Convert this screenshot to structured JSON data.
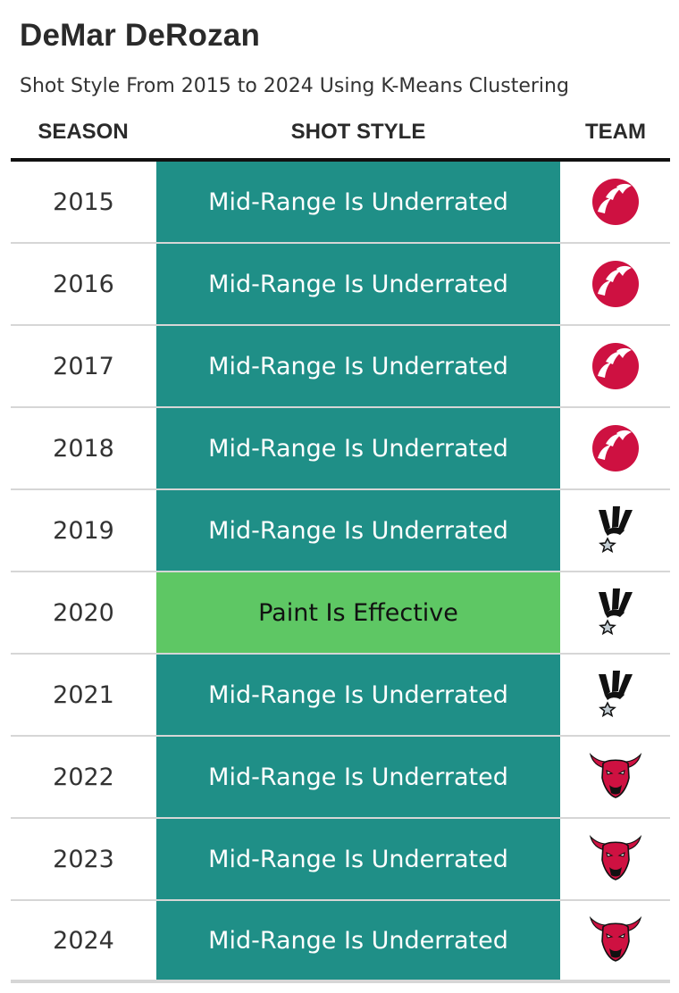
{
  "title": "DeMar DeRozan",
  "subtitle": "Shot Style From 2015 to 2024 Using K-Means Clustering",
  "headers": {
    "season": "SEASON",
    "shot_style": "SHOT STYLE",
    "team": "TEAM"
  },
  "colors": {
    "Mid-Range Is Underrated": {
      "bg": "#1f8f87",
      "fg": "#ffffff"
    },
    "Paint Is Effective": {
      "bg": "#5ec764",
      "fg": "#111111"
    }
  },
  "chart_data": {
    "type": "table",
    "columns": [
      "SEASON",
      "SHOT STYLE",
      "TEAM"
    ],
    "rows": [
      {
        "season": "2015",
        "shot_style": "Mid-Range Is Underrated",
        "team_logo": "raptors-logo-icon"
      },
      {
        "season": "2016",
        "shot_style": "Mid-Range Is Underrated",
        "team_logo": "raptors-logo-icon"
      },
      {
        "season": "2017",
        "shot_style": "Mid-Range Is Underrated",
        "team_logo": "raptors-logo-icon"
      },
      {
        "season": "2018",
        "shot_style": "Mid-Range Is Underrated",
        "team_logo": "raptors-logo-icon"
      },
      {
        "season": "2019",
        "shot_style": "Mid-Range Is Underrated",
        "team_logo": "spurs-logo-icon"
      },
      {
        "season": "2020",
        "shot_style": "Paint Is Effective",
        "team_logo": "spurs-logo-icon"
      },
      {
        "season": "2021",
        "shot_style": "Mid-Range Is Underrated",
        "team_logo": "spurs-logo-icon"
      },
      {
        "season": "2022",
        "shot_style": "Mid-Range Is Underrated",
        "team_logo": "bulls-logo-icon"
      },
      {
        "season": "2023",
        "shot_style": "Mid-Range Is Underrated",
        "team_logo": "bulls-logo-icon"
      },
      {
        "season": "2024",
        "shot_style": "Mid-Range Is Underrated",
        "team_logo": "bulls-logo-icon"
      }
    ]
  }
}
